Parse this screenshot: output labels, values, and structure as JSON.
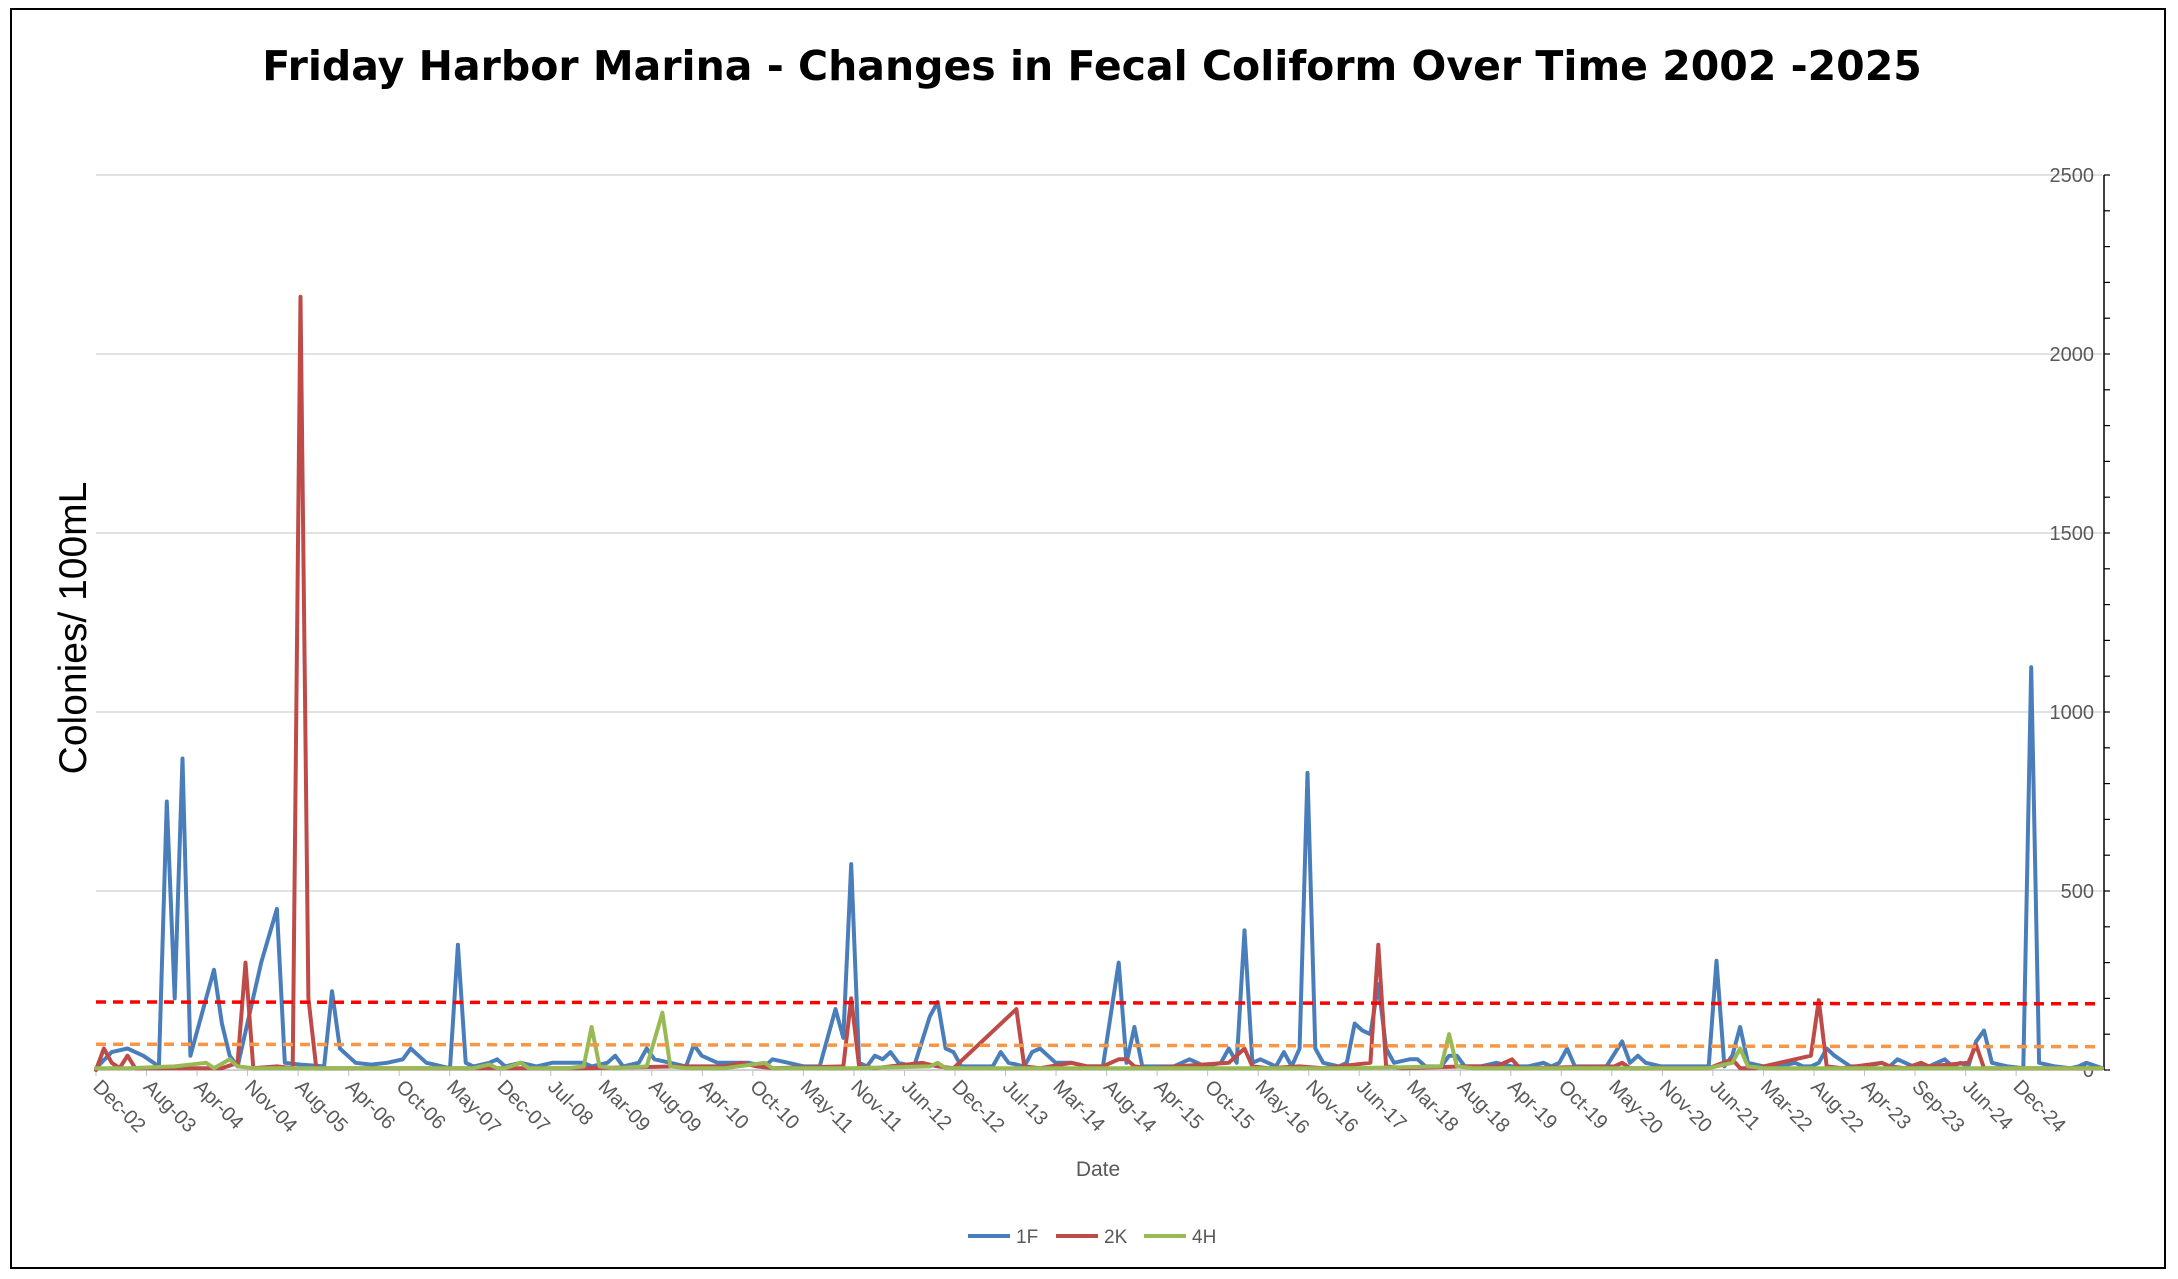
{
  "chart_data": {
    "type": "line",
    "title": "Friday Harbor Marina - Changes in Fecal Coliform Over Time 2002 -2025",
    "xlabel": "Date",
    "ylabel": "Colonies/ 100mL",
    "ylim": [
      0,
      2500
    ],
    "y_axis_side": "right",
    "y_ticks": [
      0,
      500,
      1000,
      1500,
      2000,
      2500
    ],
    "grid": true,
    "legend_position": "bottom",
    "x_tick_labels": [
      "Dec-02",
      "Aug-03",
      "Apr-04",
      "Nov-04",
      "Aug-05",
      "Apr-06",
      "Oct-06",
      "May-07",
      "Dec-07",
      "Jul-08",
      "Mar-09",
      "Aug-09",
      "Apr-10",
      "Oct-10",
      "May-11",
      "Nov-11",
      "Jun-12",
      "Dec-12",
      "Jul-13",
      "Mar-14",
      "Aug-14",
      "Apr-15",
      "Oct-15",
      "May-16",
      "Nov-16",
      "Jun-17",
      "Mar-18",
      "Aug-18",
      "Apr-19",
      "Oct-19",
      "May-20",
      "Nov-20",
      "Jun-21",
      "Mar-22",
      "Aug-22",
      "Apr-23",
      "Sep-23",
      "Jun-24",
      "Dec-24"
    ],
    "series": [
      {
        "name": "1F",
        "color": "#4a7ebb",
        "points": [
          [
            0,
            5
          ],
          [
            2,
            50
          ],
          [
            4,
            60
          ],
          [
            6,
            40
          ],
          [
            8,
            10
          ],
          [
            9,
            750
          ],
          [
            10,
            200
          ],
          [
            11,
            870
          ],
          [
            12,
            40
          ],
          [
            14,
            200
          ],
          [
            15,
            280
          ],
          [
            16,
            130
          ],
          [
            17,
            40
          ],
          [
            18,
            10
          ],
          [
            21,
            300
          ],
          [
            23,
            450
          ],
          [
            24,
            20
          ],
          [
            26,
            15
          ],
          [
            29,
            10
          ],
          [
            30,
            220
          ],
          [
            31,
            60
          ],
          [
            33,
            20
          ],
          [
            35,
            15
          ],
          [
            37,
            20
          ],
          [
            39,
            30
          ],
          [
            40,
            60
          ],
          [
            42,
            20
          ],
          [
            43,
            15
          ],
          [
            44,
            10
          ],
          [
            45,
            5
          ],
          [
            46,
            350
          ],
          [
            47,
            20
          ],
          [
            48,
            10
          ],
          [
            50,
            20
          ],
          [
            51,
            30
          ],
          [
            52,
            10
          ],
          [
            54,
            20
          ],
          [
            56,
            10
          ],
          [
            58,
            20
          ],
          [
            60,
            20
          ],
          [
            62,
            20
          ],
          [
            63,
            10
          ],
          [
            65,
            20
          ],
          [
            66,
            40
          ],
          [
            67,
            10
          ],
          [
            69,
            20
          ],
          [
            70,
            60
          ],
          [
            71,
            30
          ],
          [
            73,
            20
          ],
          [
            75,
            10
          ],
          [
            76,
            70
          ],
          [
            77,
            40
          ],
          [
            79,
            20
          ],
          [
            81,
            20
          ],
          [
            83,
            20
          ],
          [
            85,
            10
          ],
          [
            86,
            30
          ],
          [
            88,
            20
          ],
          [
            90,
            10
          ],
          [
            92,
            10
          ],
          [
            94,
            170
          ],
          [
            95,
            90
          ],
          [
            96,
            575
          ],
          [
            97,
            20
          ],
          [
            98,
            10
          ],
          [
            99,
            40
          ],
          [
            100,
            30
          ],
          [
            101,
            50
          ],
          [
            102,
            20
          ],
          [
            104,
            10
          ],
          [
            106,
            150
          ],
          [
            107,
            190
          ],
          [
            108,
            60
          ],
          [
            109,
            50
          ],
          [
            110,
            10
          ],
          [
            112,
            10
          ],
          [
            114,
            10
          ],
          [
            115,
            50
          ],
          [
            116,
            20
          ],
          [
            118,
            10
          ],
          [
            119,
            50
          ],
          [
            120,
            60
          ],
          [
            121,
            40
          ],
          [
            122,
            20
          ],
          [
            124,
            20
          ],
          [
            126,
            10
          ],
          [
            128,
            10
          ],
          [
            130,
            300
          ],
          [
            131,
            20
          ],
          [
            132,
            120
          ],
          [
            133,
            10
          ],
          [
            135,
            10
          ],
          [
            137,
            10
          ],
          [
            139,
            30
          ],
          [
            141,
            10
          ],
          [
            143,
            20
          ],
          [
            144,
            60
          ],
          [
            145,
            20
          ],
          [
            146,
            390
          ],
          [
            147,
            20
          ],
          [
            148,
            30
          ],
          [
            150,
            10
          ],
          [
            151,
            50
          ],
          [
            152,
            10
          ],
          [
            153,
            60
          ],
          [
            154,
            830
          ],
          [
            155,
            60
          ],
          [
            156,
            20
          ],
          [
            158,
            10
          ],
          [
            159,
            20
          ],
          [
            160,
            130
          ],
          [
            161,
            110
          ],
          [
            162,
            100
          ],
          [
            163,
            240
          ],
          [
            164,
            60
          ],
          [
            165,
            20
          ],
          [
            167,
            30
          ],
          [
            168,
            30
          ],
          [
            169,
            10
          ],
          [
            171,
            10
          ],
          [
            172,
            40
          ],
          [
            173,
            40
          ],
          [
            174,
            10
          ],
          [
            176,
            10
          ],
          [
            178,
            20
          ],
          [
            180,
            10
          ],
          [
            182,
            10
          ],
          [
            184,
            20
          ],
          [
            185,
            10
          ],
          [
            186,
            20
          ],
          [
            187,
            60
          ],
          [
            188,
            10
          ],
          [
            190,
            10
          ],
          [
            192,
            10
          ],
          [
            194,
            80
          ],
          [
            195,
            20
          ],
          [
            196,
            40
          ],
          [
            197,
            20
          ],
          [
            199,
            10
          ],
          [
            201,
            10
          ],
          [
            203,
            10
          ],
          [
            205,
            10
          ],
          [
            206,
            305
          ],
          [
            207,
            10
          ],
          [
            208,
            40
          ],
          [
            209,
            120
          ],
          [
            210,
            20
          ],
          [
            212,
            10
          ],
          [
            214,
            10
          ],
          [
            216,
            20
          ],
          [
            217,
            10
          ],
          [
            218,
            10
          ],
          [
            219,
            20
          ],
          [
            220,
            60
          ],
          [
            221,
            40
          ],
          [
            223,
            10
          ],
          [
            225,
            10
          ],
          [
            227,
            20
          ],
          [
            228,
            10
          ],
          [
            229,
            30
          ],
          [
            231,
            10
          ],
          [
            233,
            10
          ],
          [
            235,
            30
          ],
          [
            236,
            10
          ],
          [
            237,
            20
          ],
          [
            238,
            10
          ],
          [
            239,
            80
          ],
          [
            240,
            110
          ],
          [
            241,
            20
          ],
          [
            243,
            10
          ],
          [
            245,
            5
          ],
          [
            246,
            1125
          ],
          [
            247,
            20
          ],
          [
            249,
            10
          ],
          [
            251,
            5
          ],
          [
            252,
            10
          ],
          [
            253,
            20
          ],
          [
            255,
            5
          ]
        ]
      },
      {
        "name": "2K",
        "color": "#be4b48",
        "points": [
          [
            0,
            0
          ],
          [
            1,
            60
          ],
          [
            2,
            20
          ],
          [
            3,
            5
          ],
          [
            4,
            40
          ],
          [
            5,
            5
          ],
          [
            10,
            5
          ],
          [
            16,
            5
          ],
          [
            18,
            20
          ],
          [
            19,
            300
          ],
          [
            20,
            5
          ],
          [
            23,
            10
          ],
          [
            25,
            5
          ],
          [
            26,
            2160
          ],
          [
            27,
            200
          ],
          [
            28,
            5
          ],
          [
            30,
            5
          ],
          [
            50,
            5
          ],
          [
            62,
            5
          ],
          [
            74,
            10
          ],
          [
            80,
            10
          ],
          [
            82,
            20
          ],
          [
            84,
            10
          ],
          [
            86,
            5
          ],
          [
            95,
            10
          ],
          [
            96,
            200
          ],
          [
            97,
            10
          ],
          [
            99,
            5
          ],
          [
            105,
            20
          ],
          [
            107,
            10
          ],
          [
            109,
            5
          ],
          [
            117,
            170
          ],
          [
            118,
            10
          ],
          [
            120,
            5
          ],
          [
            124,
            20
          ],
          [
            126,
            10
          ],
          [
            128,
            10
          ],
          [
            129,
            20
          ],
          [
            130,
            30
          ],
          [
            131,
            30
          ],
          [
            132,
            10
          ],
          [
            134,
            5
          ],
          [
            144,
            20
          ],
          [
            146,
            60
          ],
          [
            147,
            10
          ],
          [
            149,
            5
          ],
          [
            153,
            10
          ],
          [
            156,
            5
          ],
          [
            162,
            20
          ],
          [
            163,
            350
          ],
          [
            164,
            10
          ],
          [
            166,
            5
          ],
          [
            174,
            10
          ],
          [
            178,
            10
          ],
          [
            180,
            30
          ],
          [
            181,
            5
          ],
          [
            193,
            10
          ],
          [
            194,
            20
          ],
          [
            195,
            5
          ],
          [
            205,
            5
          ],
          [
            208,
            30
          ],
          [
            209,
            5
          ],
          [
            211,
            5
          ],
          [
            218,
            40
          ],
          [
            219,
            195
          ],
          [
            220,
            10
          ],
          [
            222,
            5
          ],
          [
            227,
            20
          ],
          [
            228,
            10
          ],
          [
            230,
            5
          ],
          [
            232,
            20
          ],
          [
            233,
            10
          ],
          [
            238,
            20
          ],
          [
            239,
            70
          ],
          [
            240,
            5
          ],
          [
            242,
            5
          ],
          [
            255,
            5
          ]
        ]
      },
      {
        "name": "4H",
        "color": "#98b954",
        "points": [
          [
            0,
            5
          ],
          [
            4,
            5
          ],
          [
            10,
            10
          ],
          [
            14,
            20
          ],
          [
            15,
            5
          ],
          [
            17,
            30
          ],
          [
            18,
            10
          ],
          [
            20,
            5
          ],
          [
            30,
            5
          ],
          [
            45,
            5
          ],
          [
            48,
            5
          ],
          [
            50,
            15
          ],
          [
            51,
            5
          ],
          [
            52,
            5
          ],
          [
            54,
            20
          ],
          [
            55,
            5
          ],
          [
            60,
            5
          ],
          [
            62,
            10
          ],
          [
            63,
            120
          ],
          [
            64,
            10
          ],
          [
            66,
            5
          ],
          [
            70,
            10
          ],
          [
            72,
            160
          ],
          [
            73,
            10
          ],
          [
            75,
            5
          ],
          [
            80,
            5
          ],
          [
            85,
            20
          ],
          [
            86,
            5
          ],
          [
            96,
            5
          ],
          [
            106,
            10
          ],
          [
            107,
            20
          ],
          [
            108,
            5
          ],
          [
            110,
            5
          ],
          [
            130,
            5
          ],
          [
            150,
            5
          ],
          [
            160,
            5
          ],
          [
            171,
            10
          ],
          [
            172,
            100
          ],
          [
            173,
            10
          ],
          [
            175,
            5
          ],
          [
            190,
            5
          ],
          [
            205,
            5
          ],
          [
            208,
            20
          ],
          [
            209,
            60
          ],
          [
            210,
            10
          ],
          [
            212,
            5
          ],
          [
            230,
            5
          ],
          [
            255,
            5
          ]
        ]
      },
      {
        "name": "",
        "color": "#ff0000",
        "style": "dashed",
        "points": [
          [
            0,
            190
          ],
          [
            255,
            185
          ]
        ]
      },
      {
        "name": "",
        "color": "#f79646",
        "style": "dashed",
        "points": [
          [
            0,
            72
          ],
          [
            255,
            65
          ]
        ]
      }
    ]
  }
}
